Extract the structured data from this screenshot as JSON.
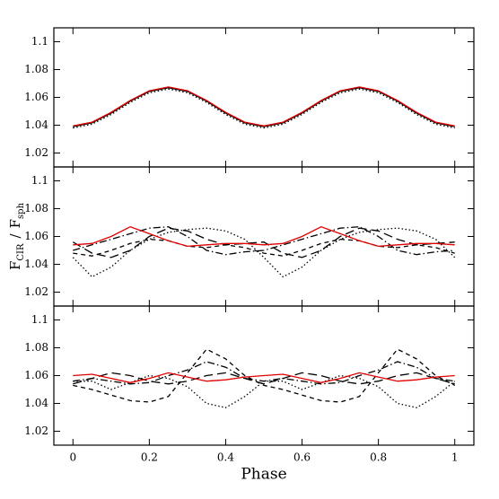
{
  "chart_data": [
    {
      "type": "line",
      "xlim": [
        -0.05,
        1.05
      ],
      "ylim": [
        1.01,
        1.11
      ],
      "yticks": [
        1.02,
        1.04,
        1.06,
        1.08,
        1.1
      ],
      "x": [
        0,
        0.05,
        0.1,
        0.15,
        0.2,
        0.25,
        0.3,
        0.35,
        0.4,
        0.45,
        0.5,
        0.55,
        0.6,
        0.65,
        0.7,
        0.75,
        0.8,
        0.85,
        0.9,
        0.95,
        1
      ],
      "series": [
        {
          "color": "#000000",
          "dash": "solid",
          "values": [
            1.039,
            1.0417,
            1.0487,
            1.0573,
            1.0643,
            1.067,
            1.0643,
            1.0573,
            1.0487,
            1.0417,
            1.039,
            1.0417,
            1.0487,
            1.0573,
            1.0643,
            1.067,
            1.0643,
            1.0573,
            1.0487,
            1.0417,
            1.039
          ]
        },
        {
          "color": "#000000",
          "dash": "dotted",
          "values": [
            1.038,
            1.0407,
            1.0477,
            1.0563,
            1.0633,
            1.066,
            1.0633,
            1.0563,
            1.0477,
            1.0407,
            1.038,
            1.0407,
            1.0477,
            1.0563,
            1.0633,
            1.066,
            1.0633,
            1.0563,
            1.0477,
            1.0407,
            1.038
          ]
        },
        {
          "color": "#e00000",
          "dash": "solid",
          "values": [
            1.0395,
            1.0422,
            1.0492,
            1.0578,
            1.0648,
            1.0675,
            1.0648,
            1.0578,
            1.0492,
            1.0422,
            1.0395,
            1.0422,
            1.0492,
            1.0578,
            1.0648,
            1.0675,
            1.0648,
            1.0578,
            1.0492,
            1.0422,
            1.0395
          ]
        }
      ]
    },
    {
      "type": "line",
      "xlim": [
        -0.05,
        1.05
      ],
      "ylim": [
        1.01,
        1.11
      ],
      "yticks": [
        1.02,
        1.04,
        1.06,
        1.08,
        1.1
      ],
      "ylabel": [
        "F",
        "CIR",
        "/",
        "F",
        "sph"
      ],
      "x": [
        0,
        0.05,
        0.1,
        0.15,
        0.2,
        0.25,
        0.3,
        0.35,
        0.4,
        0.45,
        0.5,
        0.55,
        0.6,
        0.65,
        0.7,
        0.75,
        0.8,
        0.85,
        0.9,
        0.95,
        1
      ],
      "series": [
        {
          "color": "#000000",
          "dash": "dotted",
          "values": [
            1.045,
            1.031,
            1.038,
            1.05,
            1.058,
            1.063,
            1.065,
            1.066,
            1.064,
            1.058,
            1.045,
            1.031,
            1.038,
            1.05,
            1.058,
            1.063,
            1.065,
            1.066,
            1.064,
            1.058,
            1.045
          ]
        },
        {
          "color": "#000000",
          "dash": "longdash",
          "values": [
            1.056,
            1.048,
            1.045,
            1.05,
            1.06,
            1.066,
            1.064,
            1.058,
            1.054,
            1.055,
            1.056,
            1.048,
            1.045,
            1.05,
            1.06,
            1.066,
            1.064,
            1.058,
            1.054,
            1.055,
            1.056
          ]
        },
        {
          "color": "#000000",
          "dash": "dashdot",
          "values": [
            1.05,
            1.054,
            1.058,
            1.062,
            1.066,
            1.067,
            1.06,
            1.05,
            1.047,
            1.049,
            1.05,
            1.054,
            1.058,
            1.062,
            1.066,
            1.067,
            1.06,
            1.05,
            1.047,
            1.049,
            1.05
          ]
        },
        {
          "color": "#000000",
          "dash": "dashed",
          "values": [
            1.048,
            1.046,
            1.05,
            1.055,
            1.058,
            1.057,
            1.053,
            1.052,
            1.054,
            1.052,
            1.048,
            1.046,
            1.05,
            1.055,
            1.058,
            1.057,
            1.053,
            1.052,
            1.054,
            1.052,
            1.048
          ]
        },
        {
          "color": "#e00000",
          "dash": "solid",
          "values": [
            1.054,
            1.055,
            1.06,
            1.067,
            1.062,
            1.057,
            1.053,
            1.054,
            1.055,
            1.055,
            1.054,
            1.055,
            1.06,
            1.067,
            1.062,
            1.057,
            1.053,
            1.054,
            1.055,
            1.055,
            1.054
          ]
        }
      ]
    },
    {
      "type": "line",
      "xlim": [
        -0.05,
        1.05
      ],
      "ylim": [
        1.01,
        1.11
      ],
      "yticks": [
        1.02,
        1.04,
        1.06,
        1.08,
        1.1
      ],
      "xticks": [
        0,
        0.2,
        0.4,
        0.6,
        0.8,
        1
      ],
      "xlabel": "Phase",
      "x": [
        0,
        0.05,
        0.1,
        0.15,
        0.2,
        0.25,
        0.3,
        0.35,
        0.4,
        0.45,
        0.5,
        0.55,
        0.6,
        0.65,
        0.7,
        0.75,
        0.8,
        0.85,
        0.9,
        0.95,
        1
      ],
      "series": [
        {
          "color": "#000000",
          "dash": "dashed",
          "values": [
            1.053,
            1.05,
            1.046,
            1.042,
            1.041,
            1.045,
            1.062,
            1.079,
            1.072,
            1.06,
            1.053,
            1.05,
            1.046,
            1.042,
            1.041,
            1.045,
            1.062,
            1.079,
            1.072,
            1.06,
            1.053
          ]
        },
        {
          "color": "#000000",
          "dash": "dotted",
          "values": [
            1.056,
            1.056,
            1.05,
            1.055,
            1.06,
            1.058,
            1.052,
            1.04,
            1.037,
            1.045,
            1.056,
            1.056,
            1.05,
            1.055,
            1.06,
            1.058,
            1.052,
            1.04,
            1.037,
            1.045,
            1.056
          ]
        },
        {
          "color": "#000000",
          "dash": "dashdot",
          "values": [
            1.056,
            1.058,
            1.056,
            1.054,
            1.055,
            1.06,
            1.064,
            1.07,
            1.066,
            1.058,
            1.056,
            1.058,
            1.056,
            1.054,
            1.055,
            1.06,
            1.064,
            1.07,
            1.066,
            1.058,
            1.056
          ]
        },
        {
          "color": "#000000",
          "dash": "longdash",
          "values": [
            1.054,
            1.058,
            1.062,
            1.06,
            1.056,
            1.054,
            1.056,
            1.06,
            1.062,
            1.058,
            1.054,
            1.058,
            1.062,
            1.06,
            1.056,
            1.054,
            1.056,
            1.06,
            1.062,
            1.058,
            1.054
          ]
        },
        {
          "color": "#e00000",
          "dash": "solid",
          "values": [
            1.06,
            1.061,
            1.058,
            1.055,
            1.058,
            1.062,
            1.059,
            1.056,
            1.057,
            1.059,
            1.06,
            1.061,
            1.058,
            1.055,
            1.058,
            1.062,
            1.059,
            1.056,
            1.057,
            1.059,
            1.06
          ]
        }
      ]
    }
  ]
}
